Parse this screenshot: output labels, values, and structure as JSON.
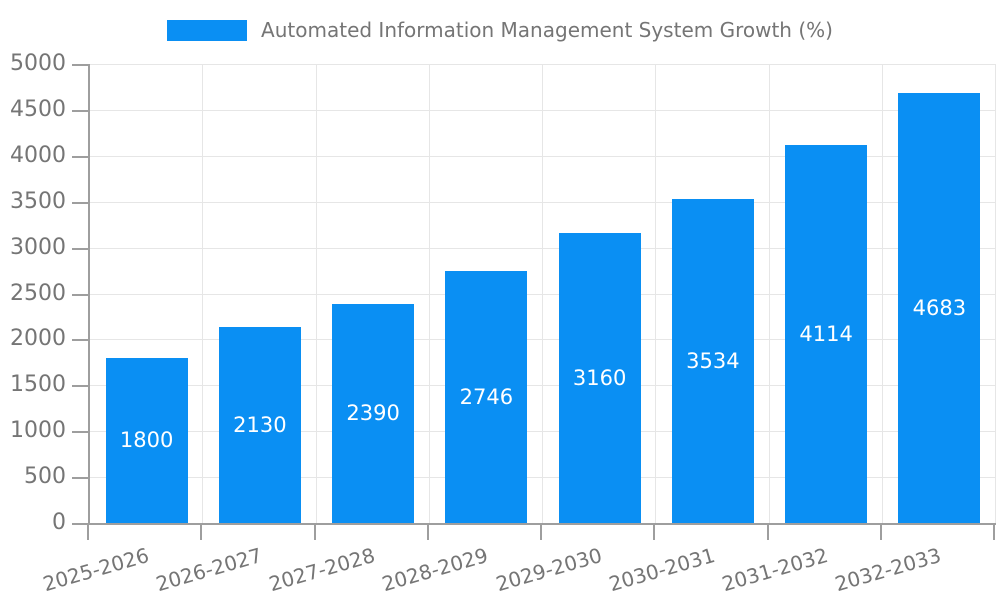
{
  "chart_data": {
    "type": "bar",
    "title": "Automated Information Management System Growth (%)",
    "series_name": "Automated Information Management System Growth (%)",
    "categories": [
      "2025-2026",
      "2026-2027",
      "2027-2028",
      "2028-2029",
      "2029-2030",
      "2030-2031",
      "2031-2032",
      "2032-2033"
    ],
    "values": [
      1800,
      2130,
      2390,
      2746,
      3160,
      3534,
      4114,
      4683
    ],
    "xlabel": "",
    "ylabel": "",
    "ylim": [
      0,
      5000
    ],
    "ytick_step": 500,
    "y_ticks": [
      0,
      500,
      1000,
      1500,
      2000,
      2500,
      3000,
      3500,
      4000,
      4500,
      5000
    ],
    "grid": true,
    "legend_position": "top-center",
    "x_label_rotation_deg": -16,
    "colors": {
      "bar": "#0a8ff3",
      "value_label": "#ffffff",
      "gridline": "#e6e6e6",
      "axis": "#9e9e9e",
      "tick_label": "#757575",
      "background": "#ffffff"
    }
  }
}
